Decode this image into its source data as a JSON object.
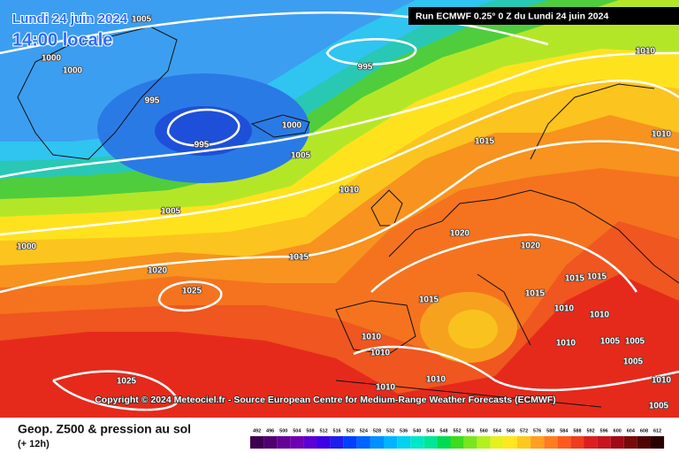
{
  "header": {
    "date": "Lundi 24 juin 2024",
    "time": "14:00 locale",
    "run": "Run ECMWF 0.25° 0 Z du Lundi 24 juin 2024"
  },
  "copyright": "Copyright © 2024 Meteociel.fr - Source European Centre for Medium-Range Weather Forecasts (ECMWF)",
  "footer": {
    "title": "Geop. Z500 & pression au sol",
    "lead": "(+ 12h)"
  },
  "legend": {
    "levels": [
      492,
      496,
      500,
      504,
      508,
      512,
      516,
      520,
      524,
      528,
      532,
      536,
      540,
      544,
      548,
      552,
      556,
      560,
      564,
      568,
      572,
      576,
      580,
      584,
      588,
      592,
      596,
      600,
      604,
      608,
      612
    ]
  },
  "isobar_labels": [
    "1005",
    "1000",
    "1000",
    "995",
    "995",
    "995",
    "1000",
    "1005",
    "1010",
    "1010",
    "1015",
    "1005",
    "1000",
    "1015",
    "1020",
    "1020",
    "1020",
    "1025",
    "1015",
    "1015",
    "1015",
    "1015",
    "1010",
    "1010",
    "1010",
    "1010",
    "1010",
    "1005",
    "1005",
    "1005",
    "1025",
    "1010",
    "1010",
    "1010",
    "1005",
    "1010"
  ]
}
